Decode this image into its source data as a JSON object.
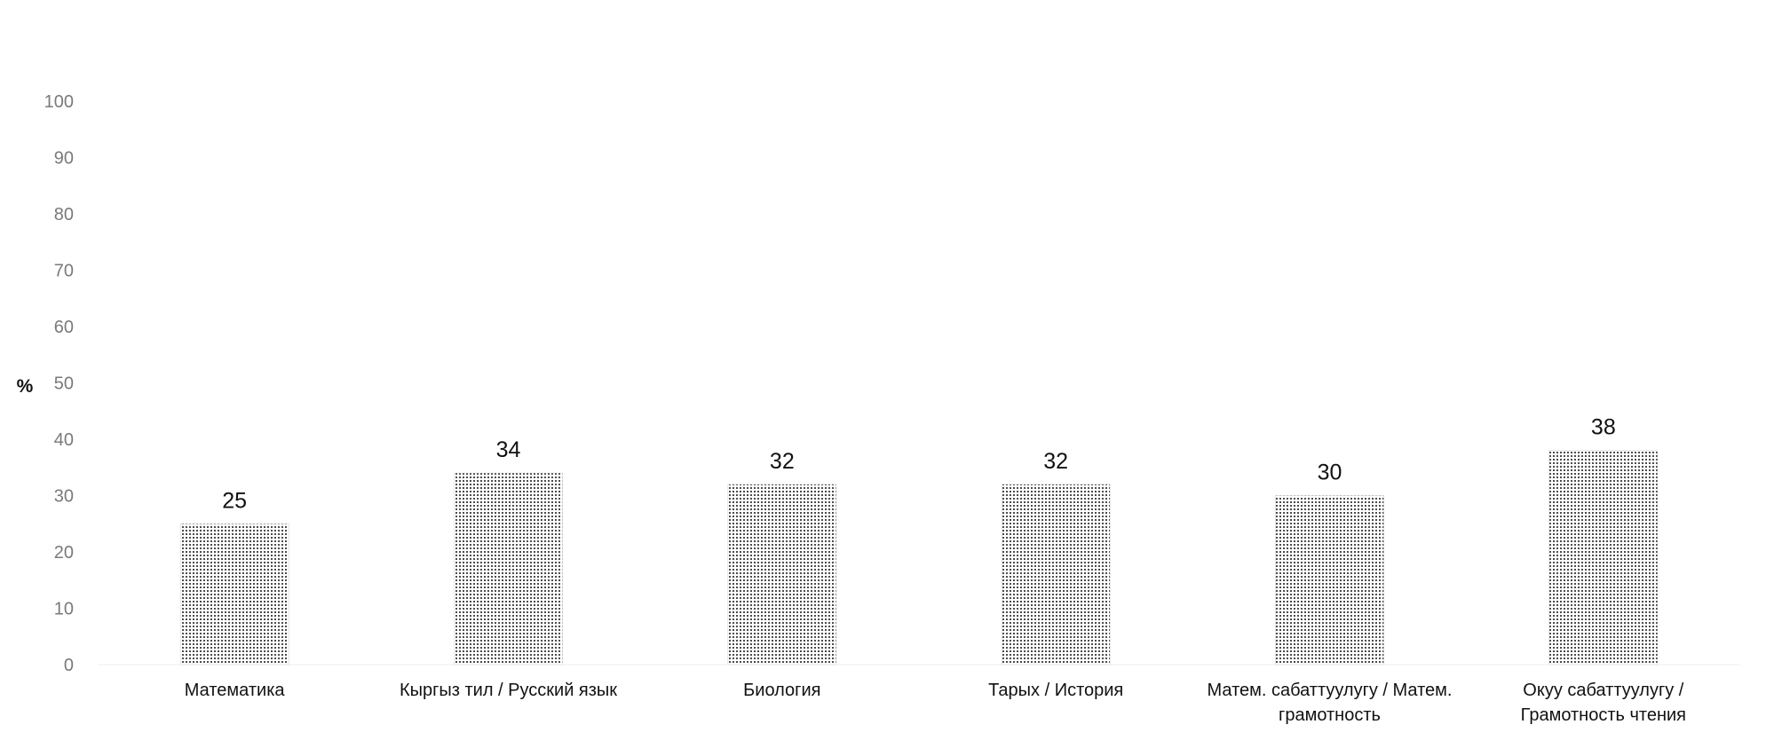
{
  "chart_data": {
    "type": "bar",
    "title": "",
    "xlabel": "",
    "ylabel": "%",
    "ylim": [
      0,
      100
    ],
    "yticks": [
      0,
      10,
      20,
      30,
      40,
      50,
      60,
      70,
      80,
      90,
      100
    ],
    "grid": false,
    "legend": "none",
    "categories": [
      [
        "Математика"
      ],
      [
        "Кыргыз тил / Русский язык"
      ],
      [
        "Биология"
      ],
      [
        "Тарых / История"
      ],
      [
        "Матем. сабаттуулугу / Матем.",
        "грамотность"
      ],
      [
        "Окуу сабаттуулугу /",
        "Грамотность чтения"
      ]
    ],
    "values": [
      25,
      34,
      32,
      32,
      30,
      38
    ],
    "bar_pattern": "dotted",
    "colors": {
      "bar_dots": "#1a1a1a",
      "bar_fill": "#ffffff",
      "tick_text": "#7a7a7a",
      "label_text": "#111111"
    }
  }
}
